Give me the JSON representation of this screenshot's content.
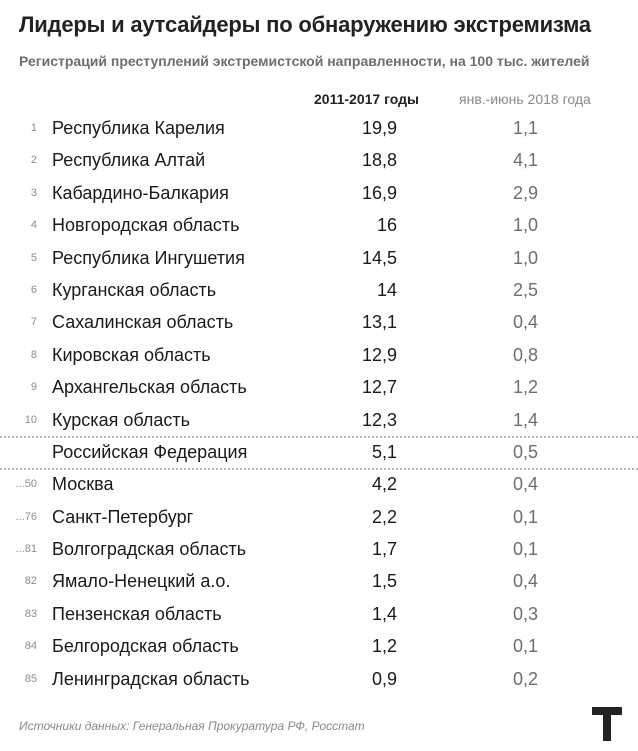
{
  "title": "Лидеры и аутсайдеры по обнаружению экстремизма",
  "subtitle": "Регистраций преступлений экстремистской направленности, на 100 тыс. жителей",
  "footer": "Источники данных: Генеральная Прокуратура РФ, Росстат",
  "chart_data": {
    "type": "table",
    "columns": [
      "2011-2017 годы",
      "янв.-июнь 2018 года"
    ],
    "rows": [
      {
        "rank": "1",
        "name": "Республика Карелия",
        "v1": "19,9",
        "v2": "1,1"
      },
      {
        "rank": "2",
        "name": "Республика Алтай",
        "v1": "18,8",
        "v2": "4,1"
      },
      {
        "rank": "3",
        "name": "Кабардино-Балкария",
        "v1": "16,9",
        "v2": "2,9"
      },
      {
        "rank": "4",
        "name": "Новгородская область",
        "v1": "16",
        "v2": "1,0"
      },
      {
        "rank": "5",
        "name": "Республика Ингушетия",
        "v1": "14,5",
        "v2": "1,0"
      },
      {
        "rank": "6",
        "name": "Курганская область",
        "v1": "14",
        "v2": "2,5"
      },
      {
        "rank": "7",
        "name": "Сахалинская область",
        "v1": "13,1",
        "v2": "0,4"
      },
      {
        "rank": "8",
        "name": "Кировская область",
        "v1": "12,9",
        "v2": "0,8"
      },
      {
        "rank": "9",
        "name": "Архангельская область",
        "v1": "12,7",
        "v2": "1,2"
      },
      {
        "rank": "10",
        "name": "Курская область",
        "v1": "12,3",
        "v2": "1,4"
      },
      {
        "rank": "",
        "name": "Российская Федерация",
        "v1": "5,1",
        "v2": "0,5",
        "separator_before": true,
        "separator_after": true
      },
      {
        "rank": "...50",
        "name": "Москва",
        "v1": "4,2",
        "v2": "0,4"
      },
      {
        "rank": "...76",
        "name": "Санкт-Петербург",
        "v1": "2,2",
        "v2": "0,1"
      },
      {
        "rank": "...81",
        "name": "Волгоградская область",
        "v1": "1,7",
        "v2": "0,1"
      },
      {
        "rank": "82",
        "name": "Ямало-Ненецкий а.о.",
        "v1": "1,5",
        "v2": "0,4"
      },
      {
        "rank": "83",
        "name": "Пензенская область",
        "v1": "1,4",
        "v2": "0,3"
      },
      {
        "rank": "84",
        "name": "Белгородская область",
        "v1": "1,2",
        "v2": "0,1"
      },
      {
        "rank": "85",
        "name": "Ленинградская область",
        "v1": "0,9",
        "v2": "0,2"
      }
    ]
  },
  "colors": {
    "text": "#1a1a1a",
    "muted": "#6e6e6e",
    "separator": "#b8b8b8",
    "logo": "#222222"
  },
  "logo_icon": "t-logo-icon"
}
